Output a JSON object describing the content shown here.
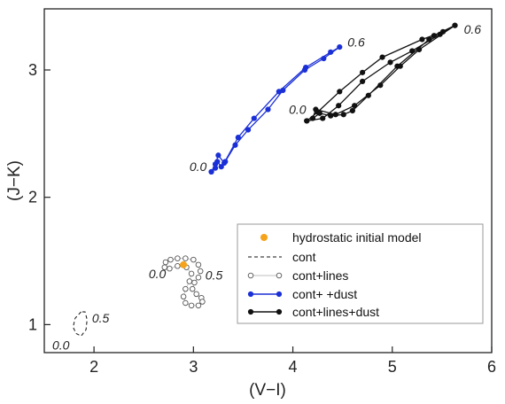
{
  "chart_data": {
    "type": "line",
    "xlabel": "(V−I)",
    "ylabel": "(J−K)",
    "xlim": [
      1.5,
      6.0
    ],
    "ylim": [
      0.78,
      3.48
    ],
    "xticks": [
      2,
      3,
      4,
      5,
      6
    ],
    "yticks": [
      1,
      2,
      3
    ],
    "grid": false,
    "legend_position": "bottom-right",
    "colors": {
      "orange": "#f5a31a",
      "blue": "#1a2fd6",
      "black": "#111111",
      "gray": "#555555"
    },
    "series": [
      {
        "name": "hydrostatic initial model",
        "style": "point",
        "points": [
          [
            2.9,
            1.47
          ]
        ]
      },
      {
        "name": "cont",
        "style": "dashed",
        "points": [
          [
            1.87,
            1.1
          ],
          [
            1.81,
            1.05
          ],
          [
            1.79,
            0.98
          ],
          [
            1.82,
            0.93
          ],
          [
            1.87,
            0.91
          ],
          [
            1.92,
            0.96
          ],
          [
            1.93,
            1.04
          ],
          [
            1.91,
            1.1
          ],
          [
            1.87,
            1.1
          ]
        ]
      },
      {
        "name": "cont+lines",
        "style": "open-circles",
        "points": [
          [
            2.76,
            1.44
          ],
          [
            2.71,
            1.45
          ],
          [
            2.72,
            1.49
          ],
          [
            2.77,
            1.51
          ],
          [
            2.84,
            1.52
          ],
          [
            2.92,
            1.52
          ],
          [
            3.0,
            1.51
          ],
          [
            3.05,
            1.47
          ],
          [
            3.07,
            1.42
          ],
          [
            3.05,
            1.37
          ],
          [
            3.01,
            1.33
          ],
          [
            2.99,
            1.28
          ],
          [
            3.03,
            1.24
          ],
          [
            3.08,
            1.21
          ],
          [
            3.09,
            1.18
          ],
          [
            3.05,
            1.15
          ],
          [
            2.98,
            1.15
          ],
          [
            2.92,
            1.17
          ],
          [
            2.9,
            1.22
          ],
          [
            2.92,
            1.28
          ],
          [
            2.96,
            1.34
          ],
          [
            2.98,
            1.4
          ],
          [
            2.93,
            1.45
          ],
          [
            2.84,
            1.46
          ],
          [
            2.76,
            1.44
          ]
        ]
      },
      {
        "name": "cont+      +dust",
        "style": "line-markers",
        "points": [
          [
            3.18,
            2.2
          ],
          [
            3.22,
            2.26
          ],
          [
            3.25,
            2.33
          ],
          [
            3.31,
            2.27
          ],
          [
            3.45,
            2.47
          ],
          [
            3.61,
            2.62
          ],
          [
            3.86,
            2.83
          ],
          [
            4.13,
            3.02
          ],
          [
            4.38,
            3.14
          ],
          [
            4.47,
            3.18
          ],
          [
            4.31,
            3.09
          ],
          [
            4.12,
            3.0
          ],
          [
            3.9,
            2.84
          ],
          [
            3.75,
            2.69
          ],
          [
            3.55,
            2.53
          ],
          [
            3.42,
            2.41
          ],
          [
            3.32,
            2.28
          ],
          [
            3.28,
            2.24
          ],
          [
            3.24,
            2.28
          ],
          [
            3.22,
            2.23
          ],
          [
            3.18,
            2.2
          ]
        ]
      },
      {
        "name": "cont+lines+dust",
        "style": "line-markers",
        "points": [
          [
            4.14,
            2.6
          ],
          [
            4.25,
            2.67
          ],
          [
            4.47,
            2.83
          ],
          [
            4.7,
            2.98
          ],
          [
            4.9,
            3.1
          ],
          [
            5.3,
            3.24
          ],
          [
            5.51,
            3.3
          ],
          [
            5.63,
            3.35
          ],
          [
            5.42,
            3.27
          ],
          [
            5.37,
            3.24
          ],
          [
            5.05,
            3.03
          ],
          [
            4.76,
            2.8
          ],
          [
            4.6,
            2.68
          ],
          [
            4.51,
            2.65
          ],
          [
            4.38,
            2.64
          ],
          [
            4.27,
            2.66
          ],
          [
            4.2,
            2.62
          ],
          [
            4.23,
            2.69
          ],
          [
            4.43,
            2.65
          ],
          [
            4.62,
            2.72
          ],
          [
            4.88,
            2.88
          ],
          [
            5.08,
            3.03
          ],
          [
            5.27,
            3.16
          ],
          [
            5.63,
            3.35
          ],
          [
            5.48,
            3.28
          ],
          [
            5.2,
            3.15
          ],
          [
            4.98,
            3.06
          ],
          [
            4.7,
            2.91
          ],
          [
            4.46,
            2.72
          ],
          [
            4.3,
            2.62
          ],
          [
            4.14,
            2.6
          ]
        ]
      }
    ],
    "annotations": [
      {
        "text": "0.6",
        "at": [
          4.55,
          3.22
        ]
      },
      {
        "text": "0.6",
        "at": [
          5.72,
          3.32
        ]
      },
      {
        "text": "0.0",
        "at": [
          3.96,
          2.69
        ]
      },
      {
        "text": "0.0",
        "at": [
          2.96,
          2.24
        ]
      },
      {
        "text": "0.0",
        "at": [
          2.55,
          1.4
        ]
      },
      {
        "text": "0.5",
        "at": [
          3.12,
          1.39
        ]
      },
      {
        "text": "0.5",
        "at": [
          1.98,
          1.05
        ]
      },
      {
        "text": "0.0",
        "at": [
          1.58,
          0.84
        ]
      }
    ]
  }
}
